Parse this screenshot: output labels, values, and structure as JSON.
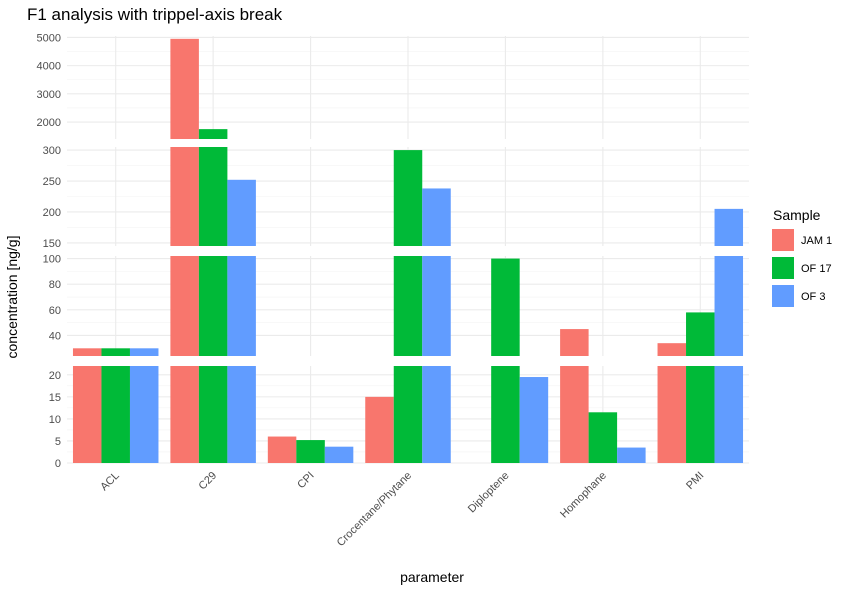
{
  "chart_data": {
    "type": "bar",
    "title": "F1 analysis with trippel-axis break",
    "xlabel": "parameter",
    "ylabel": "concentration [ng/g]",
    "legend_title": "Sample",
    "legend_position": "right",
    "grid": true,
    "categories": [
      "ACL",
      "C29",
      "CPI",
      "Crocentane/Phytane",
      "Diploptene",
      "Homophane",
      "PMI"
    ],
    "series": [
      {
        "name": "JAM 1",
        "color": "#F8766D",
        "values": [
          30,
          4950,
          6,
          15,
          null,
          45,
          34
        ]
      },
      {
        "name": "OF 17",
        "color": "#00BA38",
        "values": [
          30,
          1750,
          5.2,
          300,
          100,
          11.5,
          58
        ]
      },
      {
        "name": "OF 3",
        "color": "#619CFF",
        "values": [
          30,
          252,
          3.7,
          238,
          19.5,
          3.5,
          205
        ]
      }
    ],
    "y_segments": [
      {
        "range": [
          0,
          22
        ],
        "ticks": [
          "0",
          "5",
          "10",
          "15",
          "20"
        ]
      },
      {
        "range": [
          24,
          102
        ],
        "ticks": [
          "40",
          "60",
          "80",
          "100"
        ]
      },
      {
        "range": [
          145,
          305
        ],
        "ticks": [
          "150",
          "200",
          "250",
          "300"
        ]
      },
      {
        "range": [
          1400,
          5050
        ],
        "ticks": [
          "2000",
          "3000",
          "4000",
          "5000"
        ]
      }
    ]
  }
}
